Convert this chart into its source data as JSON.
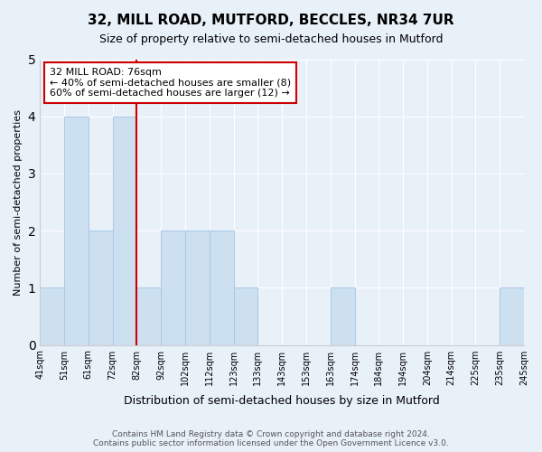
{
  "title1": "32, MILL ROAD, MUTFORD, BECCLES, NR34 7UR",
  "title2": "Size of property relative to semi-detached houses in Mutford",
  "xlabel": "Distribution of semi-detached houses by size in Mutford",
  "ylabel": "Number of semi-detached properties",
  "footer": "Contains HM Land Registry data © Crown copyright and database right 2024.\nContains public sector information licensed under the Open Government Licence v3.0.",
  "tick_labels": [
    "41sqm",
    "51sqm",
    "61sqm",
    "72sqm",
    "82sqm",
    "92sqm",
    "102sqm",
    "112sqm",
    "123sqm",
    "133sqm",
    "143sqm",
    "153sqm",
    "163sqm",
    "174sqm",
    "184sqm",
    "194sqm",
    "204sqm",
    "214sqm",
    "225sqm",
    "235sqm",
    "245sqm"
  ],
  "values": [
    1,
    4,
    2,
    4,
    1,
    2,
    2,
    2,
    1,
    0,
    0,
    0,
    1,
    0,
    0,
    0,
    0,
    0,
    0,
    1
  ],
  "bar_color": "#cce0f0",
  "bar_edge_color": "#aac8e8",
  "red_line_x": 3.5,
  "annotation_title": "32 MILL ROAD: 76sqm",
  "annotation_line1": "← 40% of semi-detached houses are smaller (8)",
  "annotation_line2": "60% of semi-detached houses are larger (12) →",
  "annotation_box_color": "#ffffff",
  "annotation_box_edge": "#cc0000",
  "ylim": [
    0,
    5
  ],
  "yticks": [
    0,
    1,
    2,
    3,
    4,
    5
  ],
  "background_color": "#e8f0f8",
  "plot_bg_color": "#e8f0f8"
}
